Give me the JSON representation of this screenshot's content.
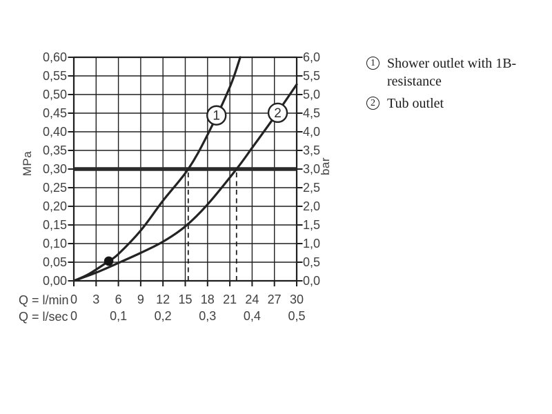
{
  "legend": {
    "items": [
      {
        "marker": "1",
        "label": "Shower outlet with 1B-resistance"
      },
      {
        "marker": "2",
        "label": "Tub outlet"
      }
    ]
  },
  "chart_data": {
    "type": "line",
    "title": "",
    "grid": true,
    "x_axis": {
      "label_lmin": "Q = l/min",
      "label_lsec": "Q = l/sec",
      "lmin_ticks": [
        0,
        3,
        6,
        9,
        12,
        15,
        18,
        21,
        24,
        27,
        30
      ],
      "lsec_ticks": [
        "0",
        "0,1",
        "0,2",
        "0,3",
        "0,4",
        "0,5"
      ],
      "range_lmin": [
        0,
        30
      ]
    },
    "y_axis_left": {
      "label": "MPa",
      "ticks": [
        "0,00",
        "0,05",
        "0,10",
        "0,15",
        "0,20",
        "0,25",
        "0,30",
        "0,35",
        "0,40",
        "0,45",
        "0,50",
        "0,55",
        "0,60"
      ],
      "range": [
        0,
        0.6
      ]
    },
    "y_axis_right": {
      "label": "bar",
      "ticks": [
        "0,0",
        "0,5",
        "1,0",
        "1,5",
        "2,0",
        "2,5",
        "3,0",
        "3,5",
        "4,0",
        "4,5",
        "5,0",
        "5,5",
        "6,0"
      ],
      "range": [
        0,
        6
      ]
    },
    "reference_line": {
      "y_mpa": 0.3
    },
    "dashed_guides": [
      {
        "x_lmin": 15.4,
        "y_top_mpa": 0.3
      },
      {
        "x_lmin": 21.9,
        "y_top_mpa": 0.3
      }
    ],
    "point_marker": {
      "x_lmin": 4.7,
      "y_mpa": 0.053
    },
    "series": [
      {
        "name": "Shower outlet with 1B-resistance",
        "marker": "1",
        "marker_at": {
          "x_lmin": 19.2,
          "y_mpa": 0.444
        },
        "points": [
          [
            0,
            0
          ],
          [
            2,
            0.018
          ],
          [
            4.7,
            0.053
          ],
          [
            6,
            0.072
          ],
          [
            9,
            0.135
          ],
          [
            12,
            0.215
          ],
          [
            15.4,
            0.3
          ],
          [
            18,
            0.392
          ],
          [
            21,
            0.52
          ],
          [
            22.4,
            0.6
          ]
        ]
      },
      {
        "name": "Tub outlet",
        "marker": "2",
        "marker_at": {
          "x_lmin": 27.45,
          "y_mpa": 0.451
        },
        "points": [
          [
            0,
            0
          ],
          [
            3,
            0.022
          ],
          [
            6,
            0.048
          ],
          [
            9,
            0.075
          ],
          [
            12,
            0.105
          ],
          [
            15,
            0.146
          ],
          [
            18,
            0.205
          ],
          [
            21.9,
            0.3
          ],
          [
            24,
            0.357
          ],
          [
            27,
            0.44
          ],
          [
            30,
            0.527
          ]
        ]
      }
    ],
    "colors": {
      "curve": "#232323",
      "grid": "#1e1e1e",
      "text": "#414141",
      "reference": "#2b2b2b",
      "marker_fill": "#ffffff",
      "dot": "#161616",
      "background": "#ffffff"
    }
  }
}
